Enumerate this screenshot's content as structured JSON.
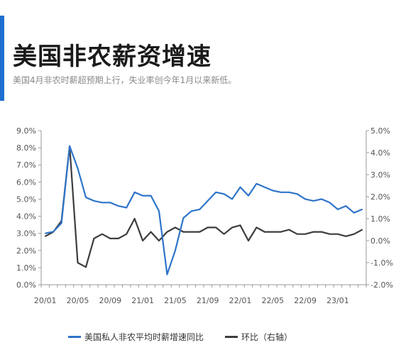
{
  "header": {
    "title": "美国非农薪资增速",
    "subtitle": "美国4月非农时薪超预期上行，失业率创今年1月以来新低。"
  },
  "colors": {
    "accent": "#1f6fd1",
    "blue_series": "#2e74c9",
    "black_series": "#3d3d3d",
    "axis": "#999999"
  },
  "chart_data": {
    "type": "line",
    "x": [
      "20/01",
      "20/02",
      "20/03",
      "20/04",
      "20/05",
      "20/06",
      "20/07",
      "20/08",
      "20/09",
      "20/10",
      "20/11",
      "20/12",
      "21/01",
      "21/02",
      "21/03",
      "21/04",
      "21/05",
      "21/06",
      "21/07",
      "21/08",
      "21/09",
      "21/10",
      "21/11",
      "21/12",
      "22/01",
      "22/02",
      "22/03",
      "22/04",
      "22/05",
      "22/06",
      "22/07",
      "22/08",
      "22/09",
      "22/10",
      "22/11",
      "22/12",
      "23/01",
      "23/02",
      "23/03",
      "23/04"
    ],
    "x_tick_labels": [
      "20/01",
      "20/05",
      "20/09",
      "21/01",
      "21/05",
      "21/09",
      "22/01",
      "22/05",
      "22/09",
      "23/01"
    ],
    "series": [
      {
        "name": "美国私人非农平均时薪增速同比",
        "axis": "left",
        "values": [
          3.0,
          3.1,
          3.6,
          8.1,
          6.8,
          5.1,
          4.9,
          4.8,
          4.8,
          4.6,
          4.5,
          5.4,
          5.2,
          5.2,
          4.3,
          0.6,
          2.0,
          3.9,
          4.3,
          4.4,
          4.9,
          5.4,
          5.3,
          5.0,
          5.7,
          5.2,
          5.9,
          5.7,
          5.5,
          5.4,
          5.4,
          5.3,
          5.0,
          4.9,
          5.0,
          4.8,
          4.4,
          4.6,
          4.2,
          4.4
        ]
      },
      {
        "name": "环比（右轴）",
        "axis": "right",
        "values": [
          0.2,
          0.4,
          0.9,
          4.3,
          -1.0,
          -1.2,
          0.1,
          0.3,
          0.1,
          0.1,
          0.3,
          1.0,
          0.0,
          0.4,
          0.0,
          0.4,
          0.6,
          0.4,
          0.4,
          0.4,
          0.6,
          0.6,
          0.3,
          0.6,
          0.7,
          0.0,
          0.6,
          0.4,
          0.4,
          0.4,
          0.5,
          0.3,
          0.3,
          0.4,
          0.4,
          0.3,
          0.3,
          0.2,
          0.3,
          0.5
        ]
      }
    ],
    "y_left": {
      "ticks": [
        "0.0%",
        "1.0%",
        "2.0%",
        "3.0%",
        "4.0%",
        "5.0%",
        "6.0%",
        "7.0%",
        "8.0%",
        "9.0%"
      ],
      "range": [
        0,
        9
      ]
    },
    "y_right": {
      "ticks": [
        "-2.0%",
        "-1.0%",
        "0.0%",
        "1.0%",
        "2.0%",
        "3.0%",
        "4.0%",
        "5.0%"
      ],
      "range": [
        -2,
        5
      ]
    },
    "grid": false,
    "legend_position": "bottom"
  }
}
